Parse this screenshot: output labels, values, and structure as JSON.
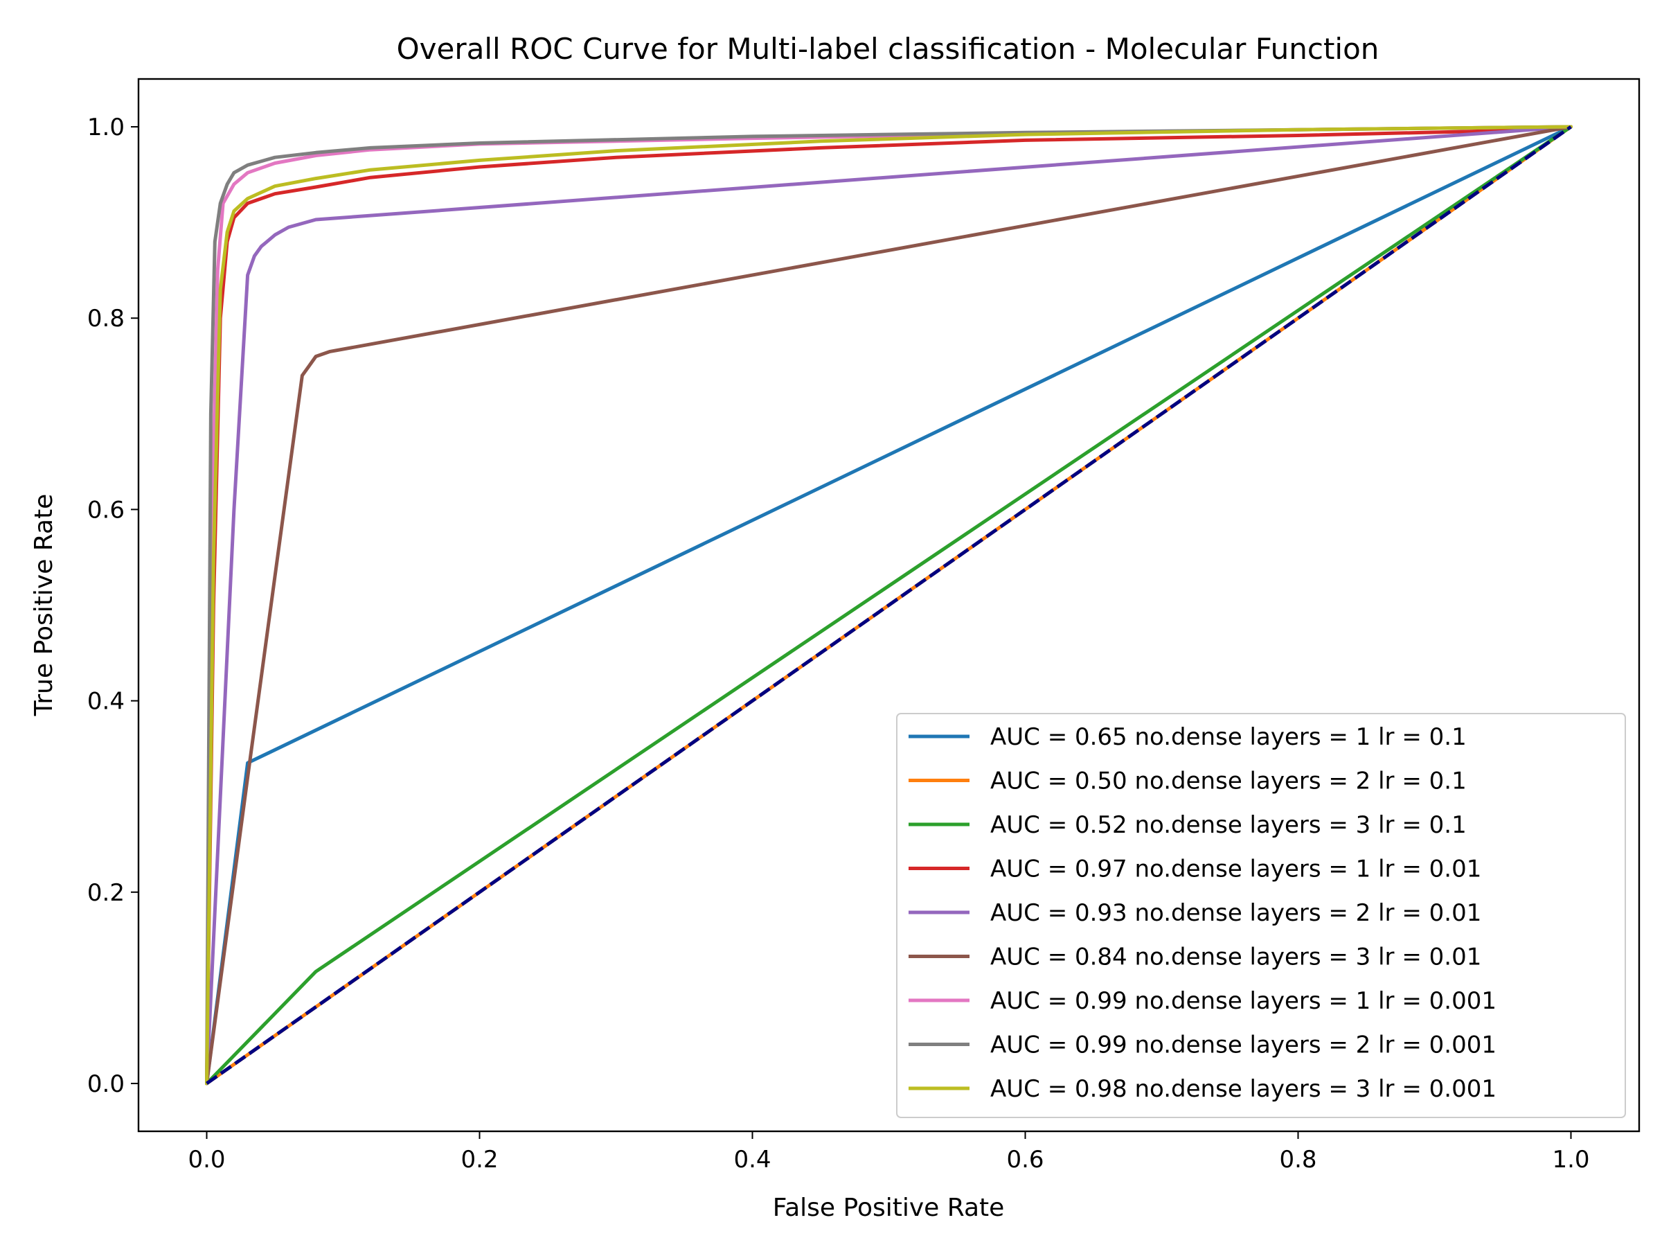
{
  "chart_data": {
    "type": "line",
    "title": "Overall ROC Curve for Multi-label classification - Molecular Function",
    "xlabel": "False Positive Rate",
    "ylabel": "True Positive Rate",
    "xlim": [
      -0.05,
      1.05
    ],
    "ylim": [
      -0.05,
      1.05
    ],
    "xticks": [
      0.0,
      0.2,
      0.4,
      0.6,
      0.8,
      1.0
    ],
    "yticks": [
      0.0,
      0.2,
      0.4,
      0.6,
      0.8,
      1.0
    ],
    "xtick_labels": [
      "0.0",
      "0.2",
      "0.4",
      "0.6",
      "0.8",
      "1.0"
    ],
    "ytick_labels": [
      "0.0",
      "0.2",
      "0.4",
      "0.6",
      "0.8",
      "1.0"
    ],
    "grid": false,
    "legend_position": "lower-right",
    "series": [
      {
        "name": "AUC = 0.65 no.dense layers = 1 lr = 0.1",
        "color": "#1f77b4",
        "x": [
          0,
          0.03,
          1.0
        ],
        "y": [
          0,
          0.335,
          1.0
        ]
      },
      {
        "name": "AUC = 0.50 no.dense layers = 2 lr = 0.1",
        "color": "#ff7f0e",
        "x": [
          0,
          1.0
        ],
        "y": [
          0,
          1.0
        ]
      },
      {
        "name": "AUC = 0.52 no.dense layers = 3 lr = 0.1",
        "color": "#2ca02c",
        "x": [
          0,
          0.08,
          1.0
        ],
        "y": [
          0,
          0.117,
          1.0
        ]
      },
      {
        "name": "AUC = 0.97 no.dense layers = 1 lr = 0.01",
        "color": "#d62728",
        "x": [
          0,
          0.005,
          0.01,
          0.015,
          0.02,
          0.03,
          0.05,
          0.08,
          0.12,
          0.2,
          0.3,
          0.45,
          0.6,
          0.8,
          0.95,
          1.0
        ],
        "y": [
          0,
          0.5,
          0.8,
          0.88,
          0.905,
          0.92,
          0.93,
          0.937,
          0.947,
          0.958,
          0.968,
          0.978,
          0.986,
          0.991,
          0.996,
          1.0
        ]
      },
      {
        "name": "AUC = 0.93 no.dense layers = 2 lr = 0.01",
        "color": "#9467bd",
        "x": [
          0,
          0.01,
          0.02,
          0.03,
          0.035,
          0.04,
          0.05,
          0.06,
          0.08,
          1.0
        ],
        "y": [
          0,
          0.3,
          0.6,
          0.845,
          0.865,
          0.875,
          0.887,
          0.895,
          0.903,
          1.0
        ]
      },
      {
        "name": "AUC = 0.84 no.dense layers = 3 lr = 0.01",
        "color": "#8c564b",
        "x": [
          0,
          0.03,
          0.07,
          0.075,
          0.08,
          0.09,
          1.0
        ],
        "y": [
          0,
          0.32,
          0.74,
          0.75,
          0.76,
          0.765,
          1.0
        ]
      },
      {
        "name": "AUC = 0.99 no.dense layers = 1 lr = 0.001",
        "color": "#e377c2",
        "x": [
          0,
          0.004,
          0.008,
          0.012,
          0.02,
          0.03,
          0.05,
          0.08,
          0.12,
          0.2,
          0.4,
          0.6,
          0.8,
          1.0
        ],
        "y": [
          0,
          0.6,
          0.85,
          0.92,
          0.94,
          0.952,
          0.962,
          0.97,
          0.976,
          0.982,
          0.988,
          0.993,
          0.997,
          1.0
        ]
      },
      {
        "name": "AUC = 0.99 no.dense layers = 2 lr = 0.001",
        "color": "#7f7f7f",
        "x": [
          0,
          0.003,
          0.006,
          0.01,
          0.015,
          0.02,
          0.03,
          0.05,
          0.08,
          0.12,
          0.2,
          0.4,
          0.6,
          0.8,
          1.0
        ],
        "y": [
          0,
          0.7,
          0.88,
          0.92,
          0.94,
          0.952,
          0.96,
          0.968,
          0.973,
          0.978,
          0.983,
          0.99,
          0.994,
          0.997,
          1.0
        ]
      },
      {
        "name": "AUC = 0.98 no.dense layers = 3 lr = 0.001",
        "color": "#bcbd22",
        "x": [
          0,
          0.005,
          0.01,
          0.015,
          0.02,
          0.03,
          0.05,
          0.08,
          0.12,
          0.2,
          0.3,
          0.45,
          0.6,
          0.8,
          1.0
        ],
        "y": [
          0,
          0.55,
          0.83,
          0.89,
          0.912,
          0.925,
          0.938,
          0.946,
          0.955,
          0.965,
          0.975,
          0.985,
          0.992,
          0.997,
          1.0
        ]
      }
    ],
    "reference_line": {
      "color": "#000080",
      "style": "dashed",
      "x": [
        0,
        1
      ],
      "y": [
        0,
        1
      ]
    }
  }
}
